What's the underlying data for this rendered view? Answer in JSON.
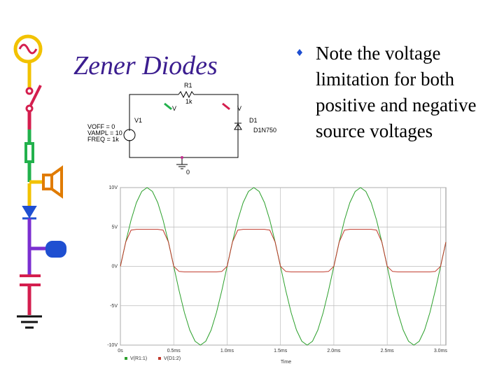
{
  "slide": {
    "title": "Zener Diodes",
    "bullet": "Note the voltage limitation for both positive and negative source voltages"
  },
  "schematic": {
    "labels": [
      "R1",
      "1k",
      "V",
      "V",
      "V1",
      "VOFF = 0",
      "VAMPL = 10",
      "FREQ = 1k",
      "D1",
      "D1N750",
      "0"
    ]
  },
  "chart_data": {
    "type": "line",
    "xlabel": "Time",
    "x": [
      0,
      0.05,
      0.1,
      0.15,
      0.2,
      0.25,
      0.3,
      0.35,
      0.4,
      0.45,
      0.5,
      0.55,
      0.6,
      0.65,
      0.7,
      0.75,
      0.8,
      0.85,
      0.9,
      0.95,
      1,
      1.05,
      1.1,
      1.15,
      1.2,
      1.25,
      1.3,
      1.35,
      1.4,
      1.45,
      1.5,
      1.55,
      1.6,
      1.65,
      1.7,
      1.75,
      1.8,
      1.85,
      1.9,
      1.95,
      2,
      2.05,
      2.1,
      2.15,
      2.2,
      2.25,
      2.3,
      2.35,
      2.4,
      2.45,
      2.5,
      2.55,
      2.6,
      2.65,
      2.7,
      2.75,
      2.8,
      2.85,
      2.9,
      2.95,
      3,
      3.05
    ],
    "series": [
      {
        "name": "V(R1:1)",
        "color": "#2ca02c",
        "values": [
          0,
          3.09,
          5.88,
          8.09,
          9.51,
          10,
          9.51,
          8.09,
          5.88,
          3.09,
          0,
          -3.09,
          -5.88,
          -8.09,
          -9.51,
          -10,
          -9.51,
          -8.09,
          -5.88,
          -3.09,
          0,
          3.09,
          5.88,
          8.09,
          9.51,
          10,
          9.51,
          8.09,
          5.88,
          3.09,
          0,
          -3.09,
          -5.88,
          -8.09,
          -9.51,
          -10,
          -9.51,
          -8.09,
          -5.88,
          -3.09,
          0,
          3.09,
          5.88,
          8.09,
          9.51,
          10,
          9.51,
          8.09,
          5.88,
          3.09,
          0,
          -3.09,
          -5.88,
          -8.09,
          -9.51,
          -10,
          -9.51,
          -8.09,
          -5.88,
          -3.09,
          0,
          3.09
        ]
      },
      {
        "name": "V(D1:2)",
        "color": "#c0392b",
        "values": [
          0,
          3.09,
          4.6,
          4.7,
          4.7,
          4.7,
          4.7,
          4.7,
          4.6,
          3.09,
          0,
          -0.65,
          -0.7,
          -0.7,
          -0.7,
          -0.7,
          -0.7,
          -0.7,
          -0.7,
          -0.65,
          0,
          3.09,
          4.6,
          4.7,
          4.7,
          4.7,
          4.7,
          4.7,
          4.6,
          3.09,
          0,
          -0.65,
          -0.7,
          -0.7,
          -0.7,
          -0.7,
          -0.7,
          -0.7,
          -0.7,
          -0.65,
          0,
          3.09,
          4.6,
          4.7,
          4.7,
          4.7,
          4.7,
          4.7,
          4.6,
          3.09,
          0,
          -0.65,
          -0.7,
          -0.7,
          -0.7,
          -0.7,
          -0.7,
          -0.7,
          -0.7,
          -0.65,
          0,
          3.09
        ]
      }
    ],
    "xlim": [
      0,
      3.05
    ],
    "xticks": [
      {
        "value": 0,
        "label": "0s"
      },
      {
        "value": 0.5,
        "label": "0.5ms"
      },
      {
        "value": 1,
        "label": "1.0ms"
      },
      {
        "value": 1.5,
        "label": "1.5ms"
      },
      {
        "value": 2,
        "label": "2.0ms"
      },
      {
        "value": 2.5,
        "label": "2.5ms"
      },
      {
        "value": 3,
        "label": "3.0ms"
      }
    ],
    "ylim": [
      -10,
      10
    ],
    "yticks": [
      {
        "value": 10,
        "label": "10V"
      },
      {
        "value": 5,
        "label": "5V"
      },
      {
        "value": 0,
        "label": "0V"
      },
      {
        "value": -5,
        "label": "-5V"
      },
      {
        "value": -10,
        "label": "-10V"
      }
    ],
    "grid": true
  }
}
